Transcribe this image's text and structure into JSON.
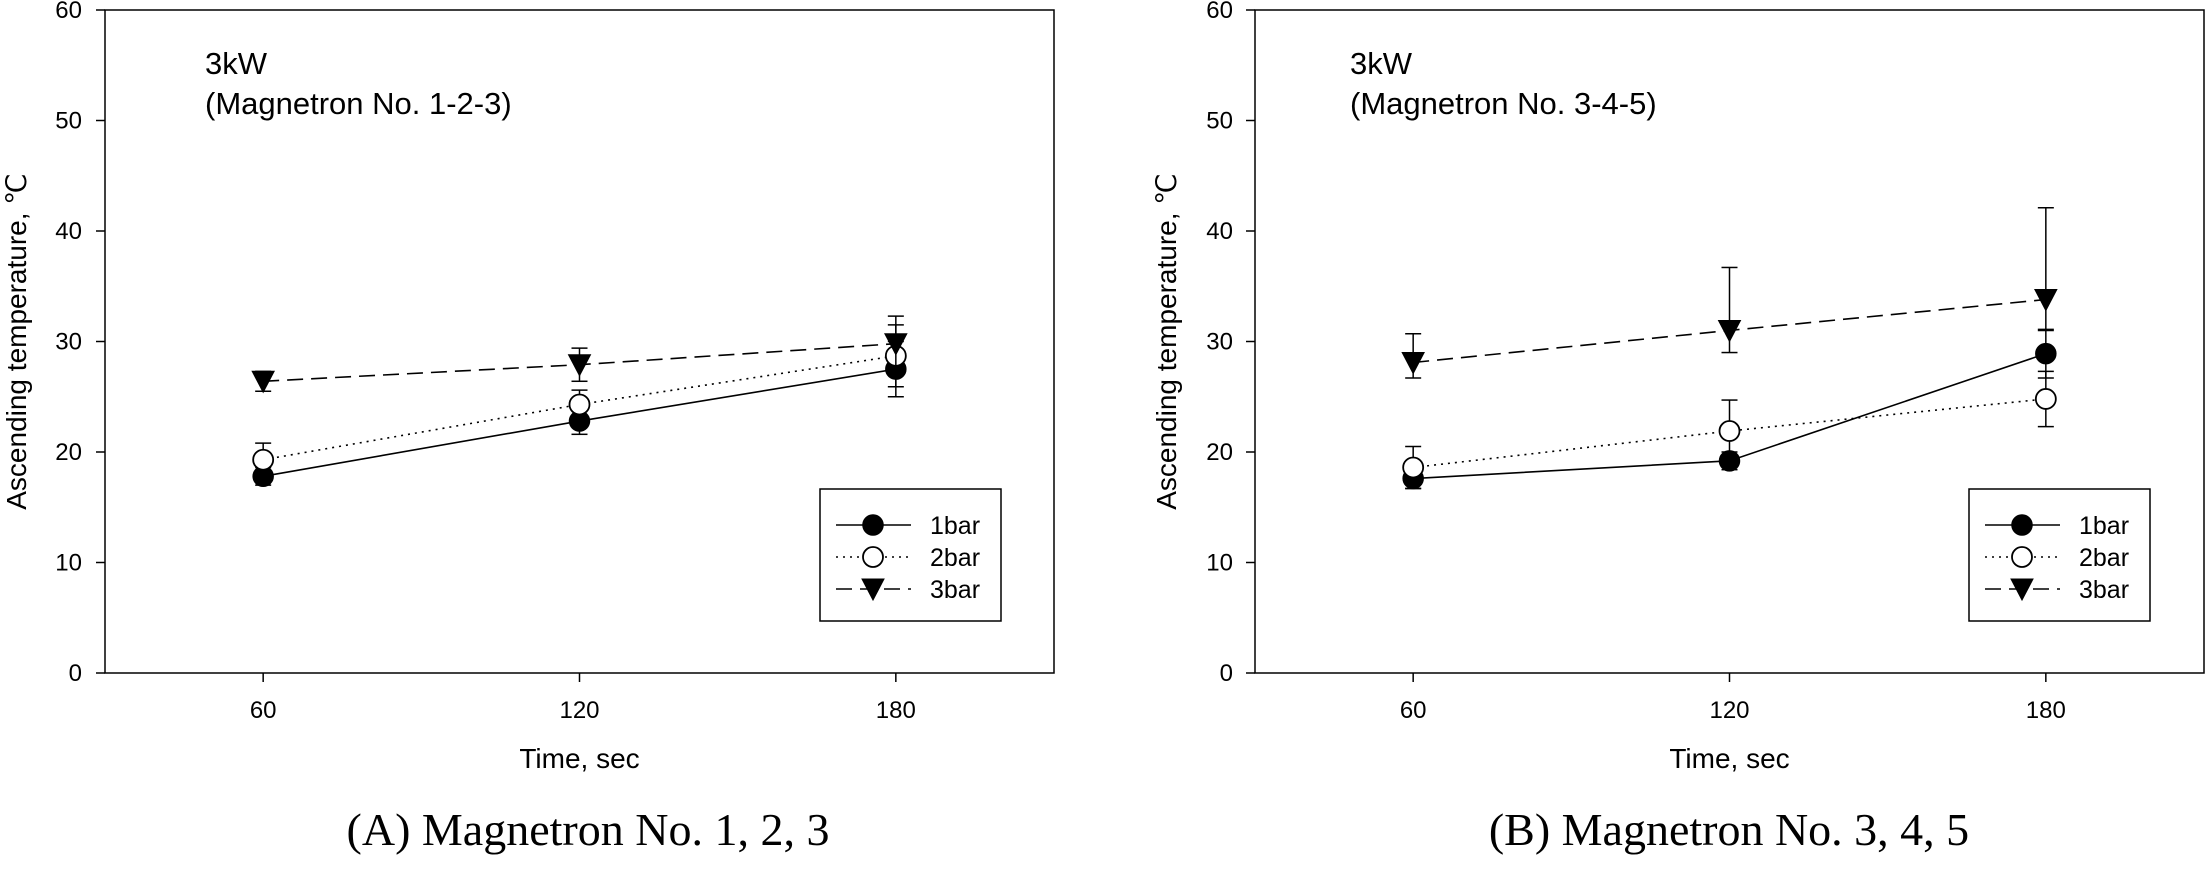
{
  "chart_data": [
    {
      "type": "line",
      "annotation": [
        "3kW",
        "(Magnetron No. 1-2-3)"
      ],
      "caption": "(A) Magnetron No. 1, 2, 3",
      "xlabel": "Time, sec",
      "ylabel": "Ascending temperature, ℃",
      "x": [
        60,
        120,
        180
      ],
      "xticks": [
        "60",
        "120",
        "180"
      ],
      "yticks": [
        "0",
        "10",
        "20",
        "30",
        "40",
        "50",
        "60"
      ],
      "xlim": [
        30,
        210
      ],
      "ylim": [
        0,
        60
      ],
      "grid": false,
      "legend_position": "bottom-right",
      "series": [
        {
          "name": "1bar",
          "marker": "filled-circle",
          "line": "solid",
          "values": [
            17.8,
            22.8,
            27.5
          ],
          "err_low": [
            0.8,
            1.2,
            2.5
          ],
          "err_high": [
            0.8,
            1.2,
            2.5
          ]
        },
        {
          "name": "2bar",
          "marker": "open-circle",
          "line": "dotted",
          "values": [
            19.3,
            24.3,
            28.7
          ],
          "err_low": [
            1.5,
            1.3,
            2.8
          ],
          "err_high": [
            1.5,
            1.3,
            2.8
          ]
        },
        {
          "name": "3bar",
          "marker": "filled-triangle-down",
          "line": "dashed",
          "values": [
            26.4,
            27.9,
            29.8
          ],
          "err_low": [
            0.9,
            1.5,
            2.5
          ],
          "err_high": [
            0.9,
            1.5,
            2.5
          ]
        }
      ]
    },
    {
      "type": "line",
      "annotation": [
        "3kW",
        "(Magnetron No. 3-4-5)"
      ],
      "caption": "(B) Magnetron No. 3, 4, 5",
      "xlabel": "Time, sec",
      "ylabel": "Ascending temperature, ℃",
      "x": [
        60,
        120,
        180
      ],
      "xticks": [
        "60",
        "120",
        "180"
      ],
      "yticks": [
        "0",
        "10",
        "20",
        "30",
        "40",
        "50",
        "60"
      ],
      "xlim": [
        30,
        210
      ],
      "ylim": [
        0,
        60
      ],
      "grid": false,
      "legend_position": "bottom-right",
      "series": [
        {
          "name": "1bar",
          "marker": "filled-circle",
          "line": "solid",
          "values": [
            17.6,
            19.2,
            28.9
          ],
          "err_low": [
            0.9,
            0.8,
            2.2
          ],
          "err_high": [
            0.9,
            0.8,
            2.2
          ]
        },
        {
          "name": "2bar",
          "marker": "open-circle",
          "line": "dotted",
          "values": [
            18.6,
            21.9,
            24.8
          ],
          "err_low": [
            1.9,
            2.8,
            2.5
          ],
          "err_high": [
            1.9,
            2.8,
            2.5
          ]
        },
        {
          "name": "3bar",
          "marker": "filled-triangle-down",
          "line": "dashed",
          "values": [
            28.1,
            31.0,
            33.8
          ],
          "err_low": [
            1.4,
            2.0,
            2.8
          ],
          "err_high": [
            2.6,
            5.7,
            8.3
          ]
        }
      ]
    }
  ]
}
